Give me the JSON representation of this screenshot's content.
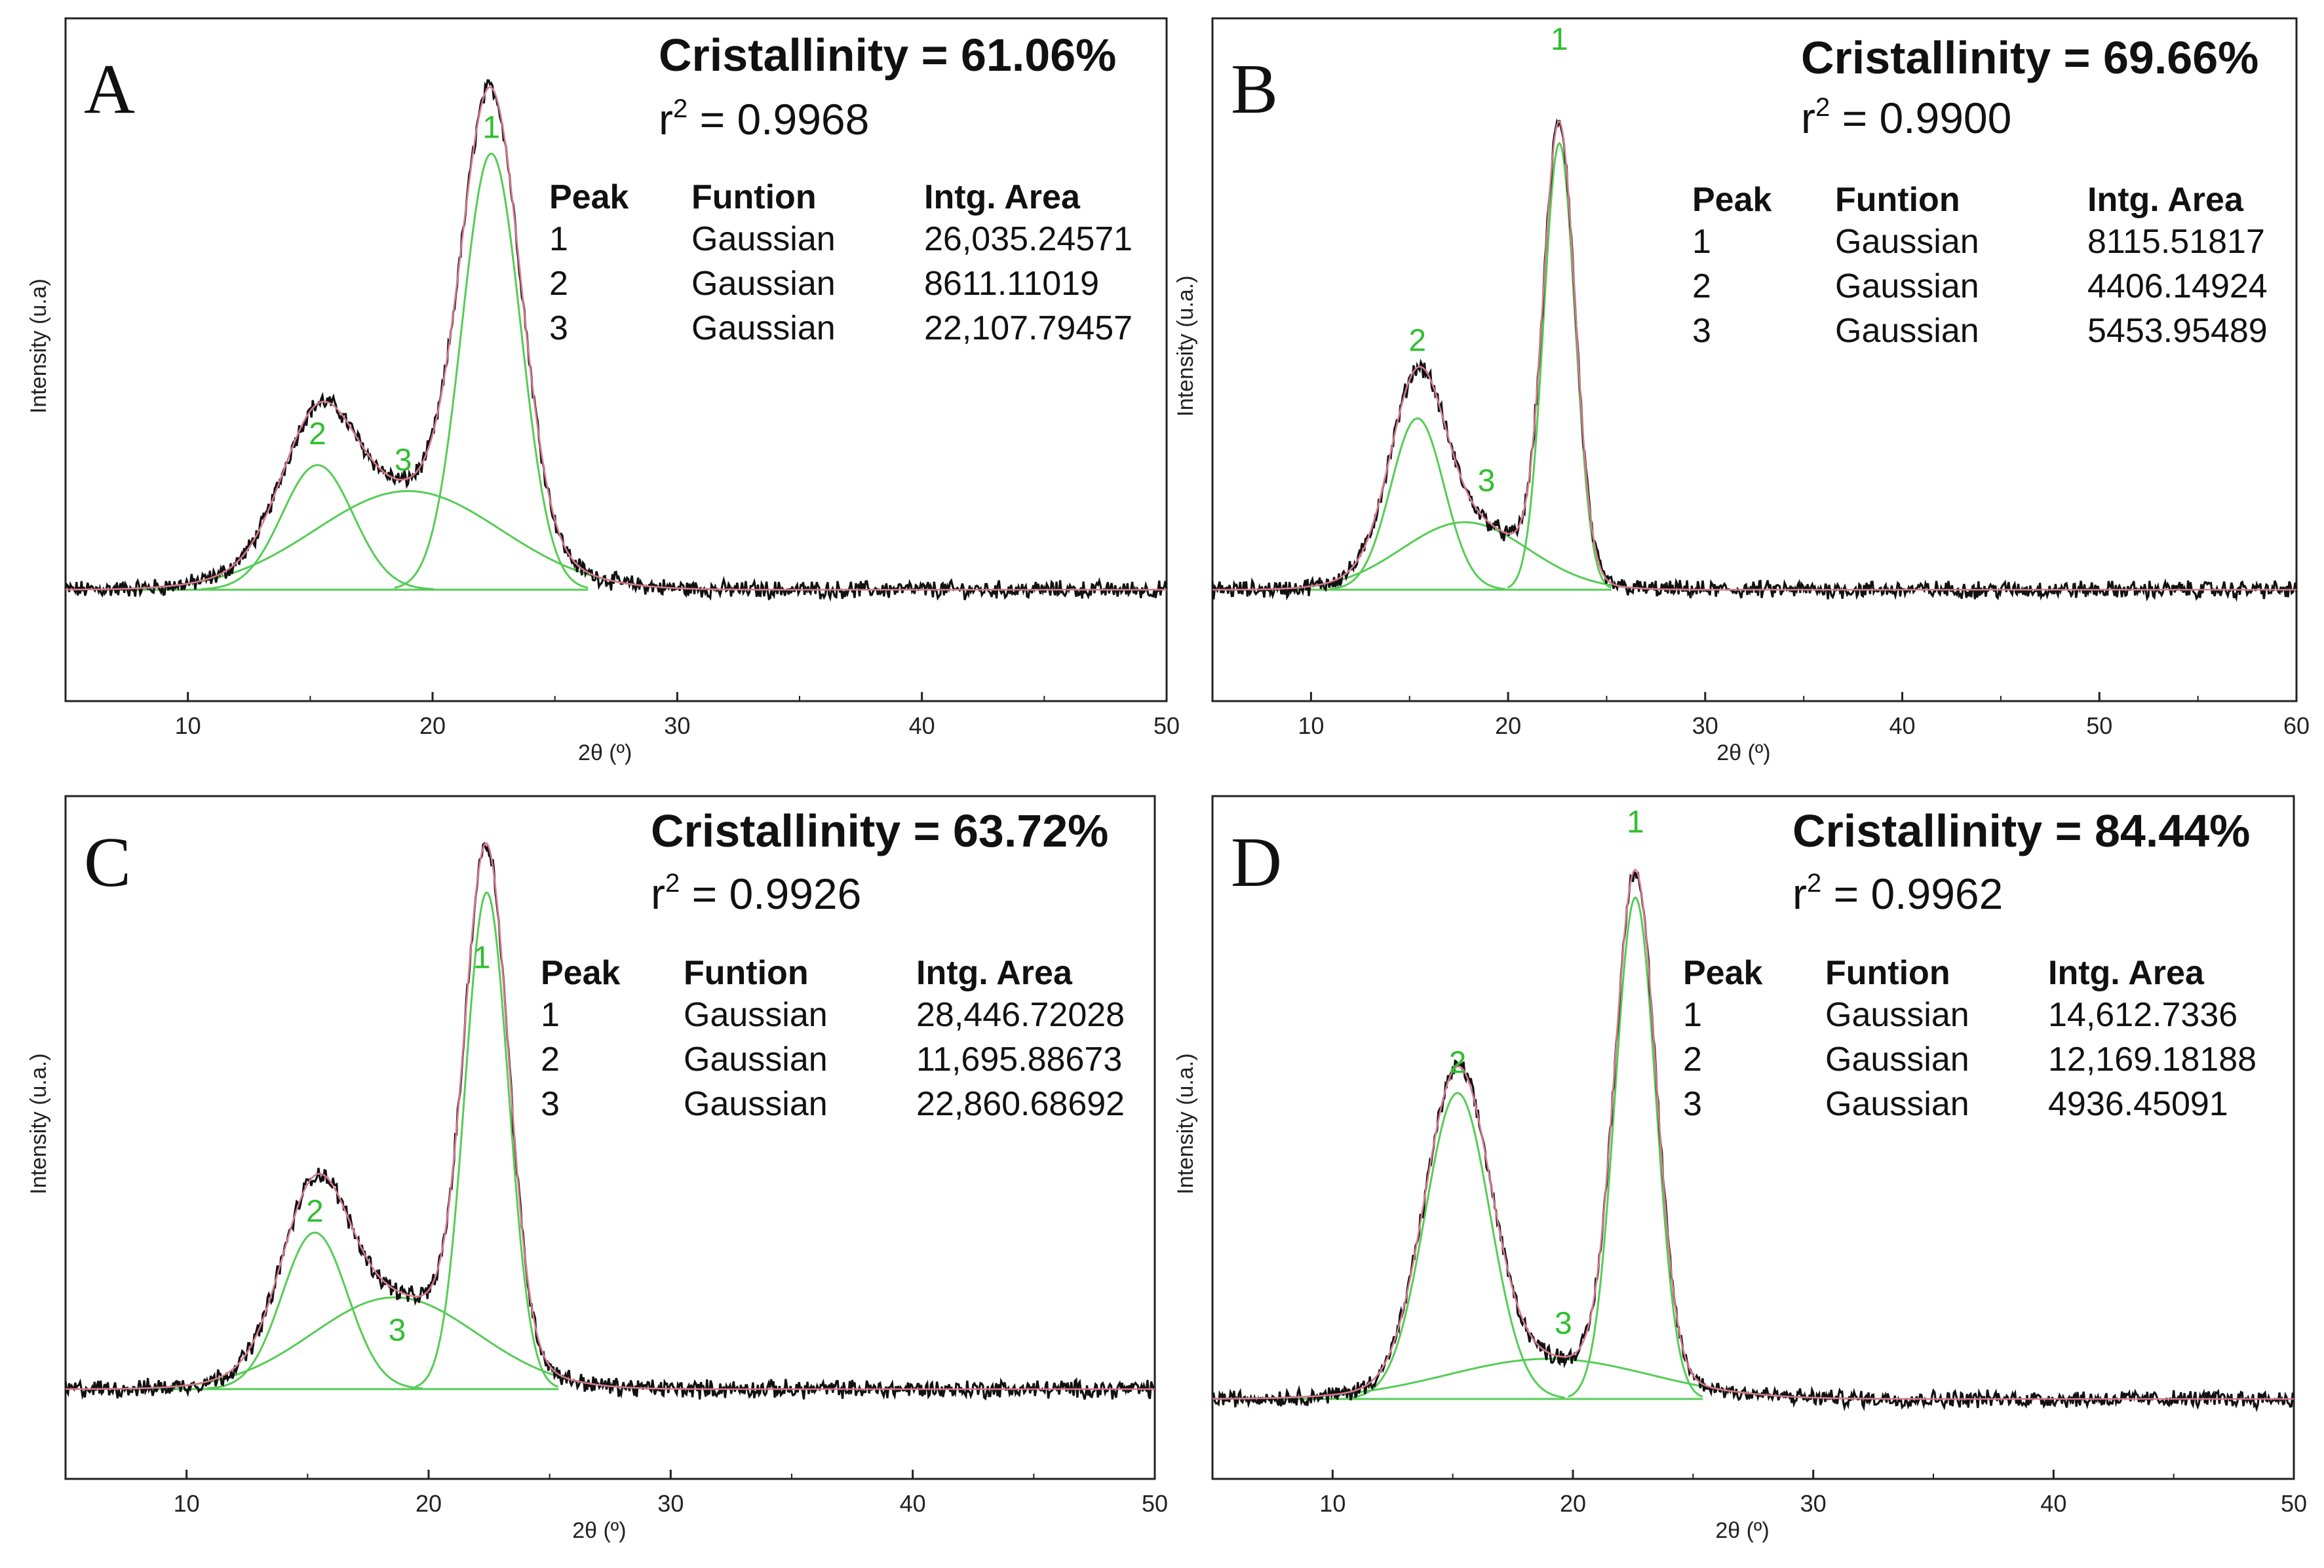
{
  "colors": {
    "observed": "#111111",
    "fitted": "#d87a8e",
    "component": "#55cc55",
    "peak_label": "#2fbf2f",
    "axis": "#222222"
  },
  "chart_data": [
    {
      "panel": "A",
      "type": "line",
      "title": "Cristallinity = 61.06%",
      "r2_prefix": "r",
      "r2_sup": "2",
      "r2_value": " = 0.9968",
      "xlabel": "2θ (º)",
      "ylabel": "Intensity (u.a)",
      "xlim": [
        5,
        50
      ],
      "ylim": [
        -0.25,
        1.05
      ],
      "xticks": [
        10,
        20,
        30,
        40,
        50
      ],
      "baseline": 0.0,
      "table": {
        "headers": [
          "Peak",
          "Funtion",
          "Intg. Area"
        ],
        "rows": [
          [
            "1",
            "Gaussian",
            "26,035.24571"
          ],
          [
            "2",
            "Gaussian",
            "8611.11019"
          ],
          [
            "3",
            "Gaussian",
            "22,107.79457"
          ]
        ]
      },
      "peaks": [
        {
          "label": "1",
          "center": 22.4,
          "height": 0.84,
          "sigma": 1.2,
          "label_at": [
            22.4,
            0.87
          ]
        },
        {
          "label": "2",
          "center": 15.3,
          "height": 0.24,
          "sigma": 1.45,
          "label_at": [
            15.3,
            0.28
          ]
        },
        {
          "label": "3",
          "center": 19.0,
          "height": 0.19,
          "sigma": 3.8,
          "label_at": [
            18.8,
            0.23
          ]
        }
      ]
    },
    {
      "panel": "B",
      "type": "line",
      "title": "Cristallinity = 69.66%",
      "r2_prefix": "r",
      "r2_sup": "2",
      "r2_value": " = 0.9900",
      "xlabel": "2θ (º)",
      "ylabel": "Intensity (u.a.)",
      "xlim": [
        5,
        60
      ],
      "ylim": [
        -0.25,
        1.05
      ],
      "xticks": [
        10,
        20,
        30,
        40,
        50,
        60
      ],
      "baseline": 0.0,
      "table": {
        "headers": [
          "Peak",
          "Funtion",
          "Intg. Area"
        ],
        "rows": [
          [
            "1",
            "Gaussian",
            "8115.51817"
          ],
          [
            "2",
            "Gaussian",
            "4406.14924"
          ],
          [
            "3",
            "Gaussian",
            "5453.95489"
          ]
        ]
      },
      "peaks": [
        {
          "label": "1",
          "center": 22.6,
          "height": 0.86,
          "sigma": 0.8,
          "label_at": [
            22.6,
            1.04
          ]
        },
        {
          "label": "2",
          "center": 15.4,
          "height": 0.33,
          "sigma": 1.35,
          "label_at": [
            15.4,
            0.46
          ]
        },
        {
          "label": "3",
          "center": 17.8,
          "height": 0.13,
          "sigma": 3.2,
          "label_at": [
            18.9,
            0.19
          ]
        }
      ]
    },
    {
      "panel": "C",
      "type": "line",
      "title": "Cristallinity = 63.72%",
      "r2_prefix": "r",
      "r2_sup": "2",
      "r2_value": " = 0.9926",
      "xlabel": "2θ (º)",
      "ylabel": "Intensity (u.a.)",
      "xlim": [
        5,
        50
      ],
      "ylim": [
        -0.18,
        1.05
      ],
      "xticks": [
        10,
        20,
        30,
        40,
        50
      ],
      "baseline": 0.0,
      "table": {
        "headers": [
          "Peak",
          "Funtion",
          "Intg. Area"
        ],
        "rows": [
          [
            "1",
            "Gaussian",
            "28,446.72028"
          ],
          [
            "2",
            "Gaussian",
            "11,695.88673"
          ],
          [
            "3",
            "Gaussian",
            "22,860.68692"
          ]
        ]
      },
      "peaks": [
        {
          "label": "1",
          "center": 22.4,
          "height": 0.92,
          "sigma": 0.9,
          "label_at": [
            22.2,
            0.78
          ]
        },
        {
          "label": "2",
          "center": 15.3,
          "height": 0.29,
          "sigma": 1.35,
          "label_at": [
            15.3,
            0.31
          ]
        },
        {
          "label": "3",
          "center": 18.6,
          "height": 0.17,
          "sigma": 3.4,
          "label_at": [
            18.7,
            0.09
          ]
        }
      ]
    },
    {
      "panel": "D",
      "type": "line",
      "title": "Cristallinity = 84.44%",
      "r2_prefix": "r",
      "r2_sup": "2",
      "r2_value": " = 0.9962",
      "xlabel": "2θ (º)",
      "ylabel": "Intensity (u.a.)",
      "xlim": [
        5,
        50
      ],
      "ylim": [
        -0.06,
        1.15
      ],
      "xticks": [
        10,
        20,
        30,
        40,
        50
      ],
      "baseline": 0.0,
      "table": {
        "headers": [
          "Peak",
          "Funtion",
          "Intg. Area"
        ],
        "rows": [
          [
            "1",
            "Gaussian",
            "14,612.7336"
          ],
          [
            "2",
            "Gaussian",
            "12,169.18188"
          ],
          [
            "3",
            "Gaussian",
            "4936.45091"
          ]
        ]
      },
      "peaks": [
        {
          "label": "1",
          "center": 22.6,
          "height": 1.0,
          "sigma": 0.85,
          "label_at": [
            22.6,
            1.13
          ]
        },
        {
          "label": "2",
          "center": 15.2,
          "height": 0.61,
          "sigma": 1.35,
          "label_at": [
            15.2,
            0.65
          ]
        },
        {
          "label": "3",
          "center": 19.0,
          "height": 0.08,
          "sigma": 4.2,
          "label_at": [
            19.6,
            0.13
          ]
        }
      ]
    }
  ]
}
